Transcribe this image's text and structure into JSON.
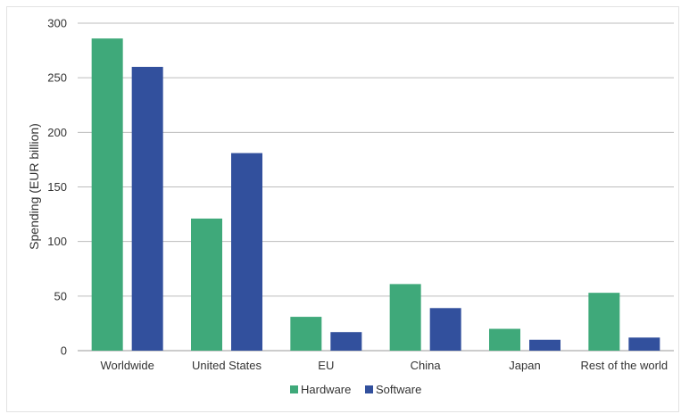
{
  "chart_data": {
    "type": "bar",
    "title": "",
    "xlabel": "",
    "ylabel": "Spending (EUR billion)",
    "ylim": [
      0,
      300
    ],
    "yticks": [
      0,
      50,
      100,
      150,
      200,
      250,
      300
    ],
    "grid": true,
    "legend_position": "bottom",
    "categories": [
      "Worldwide",
      "United States",
      "EU",
      "China",
      "Japan",
      "Rest of the world"
    ],
    "series": [
      {
        "name": "Hardware",
        "color": "#3fa97a",
        "values": [
          286,
          121,
          31,
          61,
          20,
          53
        ]
      },
      {
        "name": "Software",
        "color": "#32509d",
        "values": [
          260,
          181,
          17,
          39,
          10,
          12
        ]
      }
    ]
  }
}
